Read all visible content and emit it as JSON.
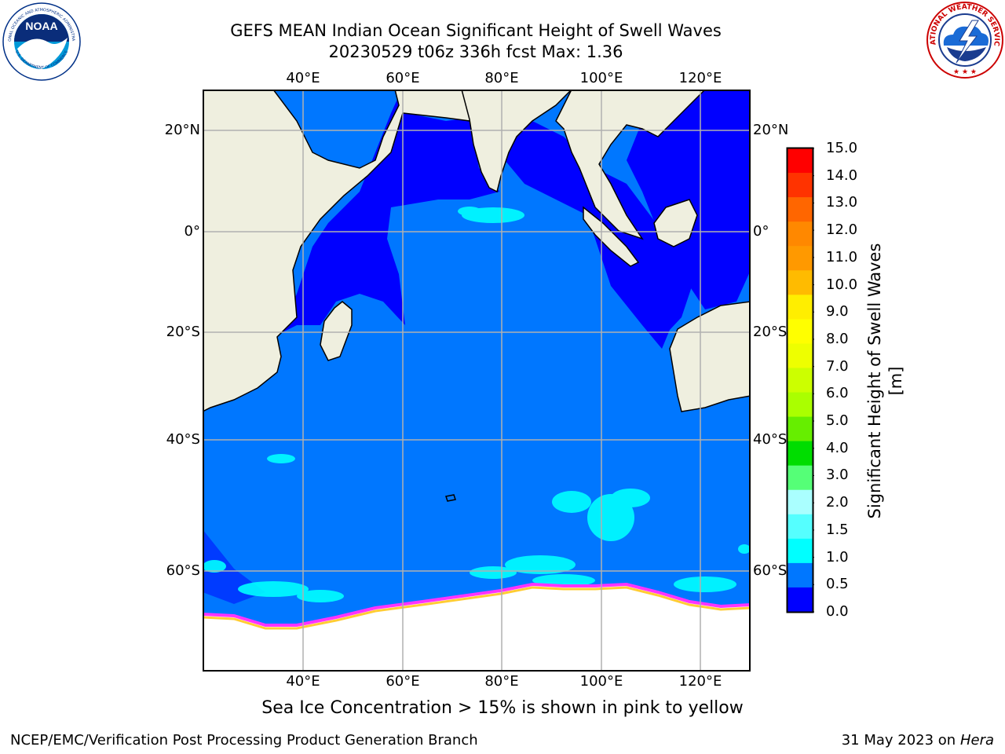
{
  "title": {
    "line1": "GEFS MEAN Indian Ocean Significant Height of Swell Waves",
    "line2": "20230529 t06z 336h fcst   Max: 1.36"
  },
  "map": {
    "lon_ticks": [
      "40°E",
      "60°E",
      "80°E",
      "100°E",
      "120°E"
    ],
    "lat_ticks_left": [
      "20°N",
      "0°",
      "20°S",
      "40°S",
      "60°S"
    ],
    "lat_ticks_right": [
      "20°N",
      "0°",
      "20°S",
      "40°S",
      "60°S"
    ],
    "colors": {
      "ocean": "#0077ff",
      "low_swell": "#0000ff",
      "mid_swell": "#00ffff",
      "land": "#efefdf",
      "ice": "#ffffff",
      "ice_edge": "#ff33ff",
      "ice_edge_yellow": "#ffcc33",
      "grid": "#b0b0b0"
    }
  },
  "colorbar": {
    "title": "Significant Height of Swell Waves [m]",
    "labels": [
      "15.0",
      "14.0",
      "13.0",
      "12.0",
      "11.0",
      "10.0",
      "9.0",
      "8.0",
      "7.0",
      "6.0",
      "5.0",
      "4.0",
      "3.0",
      "2.0",
      "1.5",
      "1.0",
      "0.5",
      "0.0"
    ],
    "colors_top_to_bottom": [
      "#ff0000",
      "#ff3300",
      "#ff6600",
      "#ff8800",
      "#ff9900",
      "#ffbb00",
      "#ffee00",
      "#ffff00",
      "#eeff00",
      "#ccff00",
      "#aaff00",
      "#66ee00",
      "#00dd00",
      "#55ff77",
      "#aaffff",
      "#55ffff",
      "#00ffff",
      "#0077ff",
      "#0000ff"
    ]
  },
  "caption": "Sea Ice Concentration > 15% is shown in pink to yellow",
  "footer": {
    "credit": "NCEP/EMC/Verification Post Processing Product Generation Branch",
    "date": "31 May 2023 on",
    "machine": "Hera"
  },
  "logos": {
    "noaa_text": "NOAA",
    "noaa_ring_text": "NATIONAL OCEANIC AND ATMOSPHERIC ADMINISTRATION",
    "noaa_ring_text_bottom": "U.S. DEPARTMENT OF COMMERCE",
    "nws_ring_text": "NATIONAL WEATHER SERVICE"
  }
}
